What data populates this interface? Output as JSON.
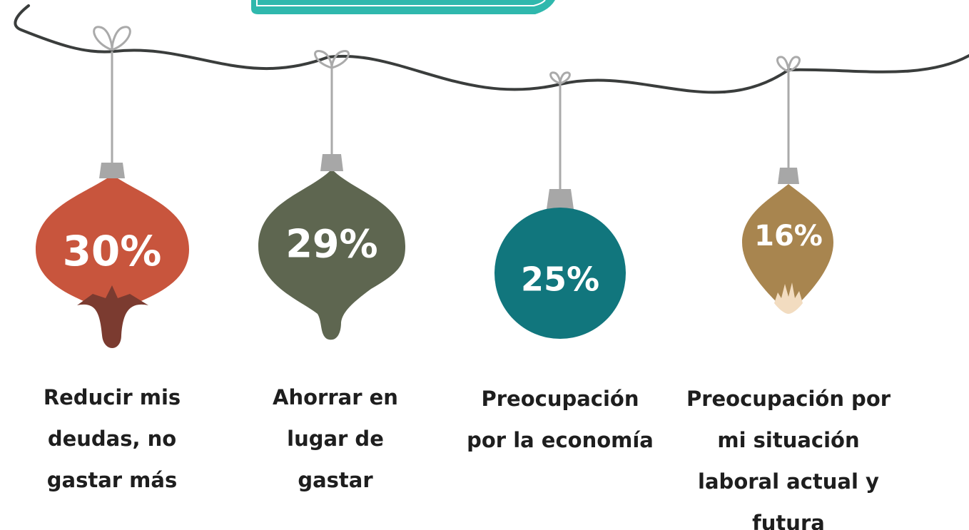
{
  "items": [
    {
      "value": "30%",
      "label": "Reducir mis deudas, no gastar más"
    },
    {
      "value": "29%",
      "label": "Ahorrar en lugar de gastar"
    },
    {
      "value": "25%",
      "label": "Preocupación por la economía"
    },
    {
      "value": "16%",
      "label": "Preocupación por mi situación laboral actual y futura"
    }
  ]
}
